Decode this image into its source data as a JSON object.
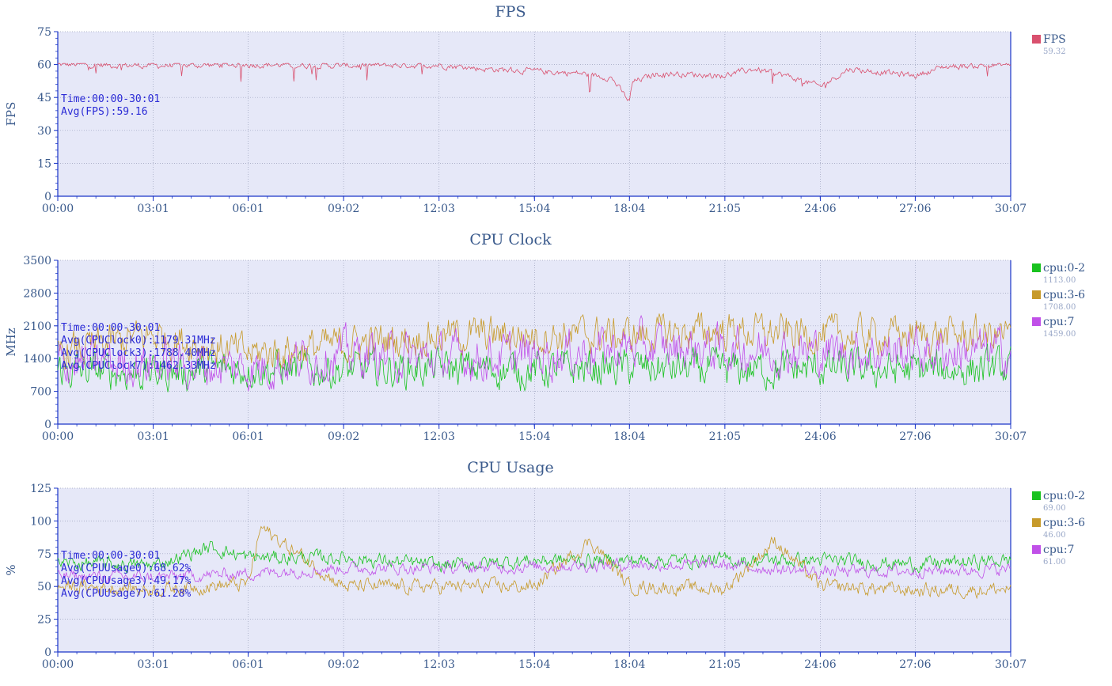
{
  "x_ticks": [
    "00:00",
    "03:01",
    "06:01",
    "09:02",
    "12:03",
    "15:04",
    "18:04",
    "21:05",
    "24:06",
    "27:06",
    "30:07"
  ],
  "colors": {
    "plot_bg": "#e6e8f8",
    "axis": "#1a35c8",
    "text": "#3a5a8c",
    "annotation": "#2b2bd6"
  },
  "chart_data": [
    {
      "type": "line",
      "title": "FPS",
      "ylabel": "FPS",
      "ylim": [
        0,
        75
      ],
      "yticks": [
        "0",
        "15",
        "30",
        "45",
        "60",
        "75"
      ],
      "xlim": [
        "00:00",
        "30:07"
      ],
      "annotations": [
        "Time:00:00-30:01",
        "Avg(FPS):59.16"
      ],
      "series": [
        {
          "name": "FPS",
          "legend_value": "59.32",
          "color": "#d9506e",
          "x": [
            "00:00",
            "03:01",
            "06:01",
            "09:02",
            "12:03",
            "13:30",
            "15:04",
            "16:30",
            "17:30",
            "18:04",
            "18:10",
            "19:00",
            "21:05",
            "22:00",
            "23:00",
            "24:06",
            "25:00",
            "27:06",
            "28:00",
            "30:07"
          ],
          "y": [
            60,
            59.5,
            60,
            59.5,
            59.8,
            58,
            57,
            56,
            54,
            43,
            52,
            56,
            55,
            58,
            55,
            50,
            58,
            55,
            59,
            60
          ]
        }
      ]
    },
    {
      "type": "line",
      "title": "CPU Clock",
      "ylabel": "MHz",
      "ylim": [
        0,
        3500
      ],
      "yticks": [
        "0",
        "700",
        "1400",
        "2100",
        "2800",
        "3500"
      ],
      "xlim": [
        "00:00",
        "30:07"
      ],
      "annotations": [
        "Time:00:00-30:01",
        "Avg(CPUClock0):1179.31MHz",
        "Avg(CPUClock3):1788.40MHz",
        "Avg(CPUClock7):1462.33MHz"
      ],
      "series": [
        {
          "name": "cpu:0-2",
          "legend_value": "1113.00",
          "color": "#19c21f",
          "x": [
            "00:00",
            "03:01",
            "06:01",
            "09:02",
            "12:03",
            "15:04",
            "18:04",
            "21:05",
            "24:06",
            "27:06",
            "30:07"
          ],
          "y": [
            1150,
            1100,
            1200,
            1150,
            1200,
            1150,
            1200,
            1150,
            1180,
            1150,
            1200
          ]
        },
        {
          "name": "cpu:3-6",
          "legend_value": "1708.00",
          "color": "#c79a2a",
          "x": [
            "00:00",
            "03:01",
            "06:01",
            "09:02",
            "12:03",
            "15:04",
            "18:04",
            "21:05",
            "24:06",
            "27:06",
            "30:07"
          ],
          "y": [
            1500,
            1900,
            1500,
            1700,
            1900,
            1900,
            1900,
            2000,
            1900,
            1900,
            1900
          ]
        },
        {
          "name": "cpu:7",
          "legend_value": "1459.00",
          "color": "#c050e8",
          "x": [
            "00:00",
            "03:01",
            "06:01",
            "09:02",
            "12:03",
            "15:04",
            "18:04",
            "21:05",
            "24:06",
            "27:06",
            "30:07"
          ],
          "y": [
            1300,
            1300,
            1200,
            1500,
            1400,
            1450,
            1650,
            1600,
            1550,
            1550,
            1550
          ]
        }
      ]
    },
    {
      "type": "line",
      "title": "CPU Usage",
      "ylabel": "%",
      "ylim": [
        0,
        125
      ],
      "yticks": [
        "0",
        "25",
        "50",
        "75",
        "100",
        "125"
      ],
      "xlim": [
        "00:00",
        "30:07"
      ],
      "annotations": [
        "Time:00:00-30:01",
        "Avg(CPUUsage0):68.62%",
        "Avg(CPUUsage3):49.17%",
        "Avg(CPUUsage7):61.28%"
      ],
      "series": [
        {
          "name": "cpu:0-2",
          "legend_value": "69.00",
          "color": "#19c21f",
          "x": [
            "00:00",
            "03:01",
            "04:50",
            "06:01",
            "09:02",
            "12:03",
            "15:04",
            "18:04",
            "21:05",
            "24:06",
            "27:06",
            "30:07"
          ],
          "y": [
            68,
            66,
            80,
            72,
            72,
            66,
            70,
            70,
            70,
            70,
            67,
            70
          ]
        },
        {
          "name": "cpu:3-6",
          "legend_value": "46.00",
          "color": "#c79a2a",
          "x": [
            "00:00",
            "03:01",
            "06:01",
            "06:25",
            "09:02",
            "12:03",
            "15:04",
            "16:50",
            "18:04",
            "21:05",
            "22:40",
            "24:06",
            "27:06",
            "30:07"
          ],
          "y": [
            50,
            48,
            52,
            95,
            50,
            50,
            50,
            85,
            50,
            48,
            85,
            50,
            47,
            48
          ]
        },
        {
          "name": "cpu:7",
          "legend_value": "61.00",
          "color": "#c050e8",
          "x": [
            "00:00",
            "03:01",
            "06:01",
            "09:02",
            "12:03",
            "15:04",
            "18:04",
            "21:05",
            "24:06",
            "27:06",
            "30:07"
          ],
          "y": [
            58,
            57,
            60,
            64,
            64,
            65,
            67,
            66,
            61,
            62,
            63
          ]
        }
      ]
    }
  ]
}
